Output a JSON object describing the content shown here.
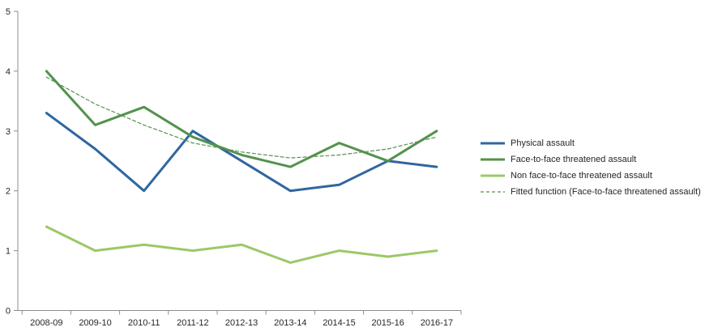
{
  "chart_data": {
    "type": "line",
    "categories": [
      "2008-09",
      "2009-10",
      "2010-11",
      "2011-12",
      "2012-13",
      "2013-14",
      "2014-15",
      "2015-16",
      "2016-17"
    ],
    "series": [
      {
        "name": "Physical assault",
        "color": "#2F66A1",
        "style": "solid",
        "width": 3,
        "values": [
          3.3,
          2.7,
          2.0,
          3.0,
          2.5,
          2.0,
          2.1,
          2.5,
          2.4
        ]
      },
      {
        "name": "Face-to-face threatened assault",
        "color": "#53924D",
        "style": "solid",
        "width": 3,
        "values": [
          4.0,
          3.1,
          3.4,
          2.9,
          2.6,
          2.4,
          2.8,
          2.5,
          3.0
        ]
      },
      {
        "name": "Non face-to-face threatened assault",
        "color": "#9CC868",
        "style": "solid",
        "width": 3,
        "values": [
          1.4,
          1.0,
          1.1,
          1.0,
          1.1,
          0.8,
          1.0,
          0.9,
          1.0
        ]
      },
      {
        "name": "Fitted function (Face-to-face threatened assault)",
        "color": "#53924D",
        "style": "dashed",
        "width": 1.2,
        "values": [
          3.9,
          3.45,
          3.1,
          2.8,
          2.65,
          2.55,
          2.6,
          2.7,
          2.9
        ]
      }
    ],
    "ylim": [
      0,
      5
    ],
    "yticks": [
      0,
      1,
      2,
      3,
      4,
      5
    ],
    "grid": false,
    "legend_position": "right",
    "axis_color": "#8C8C8C",
    "label_color": "#262626"
  }
}
